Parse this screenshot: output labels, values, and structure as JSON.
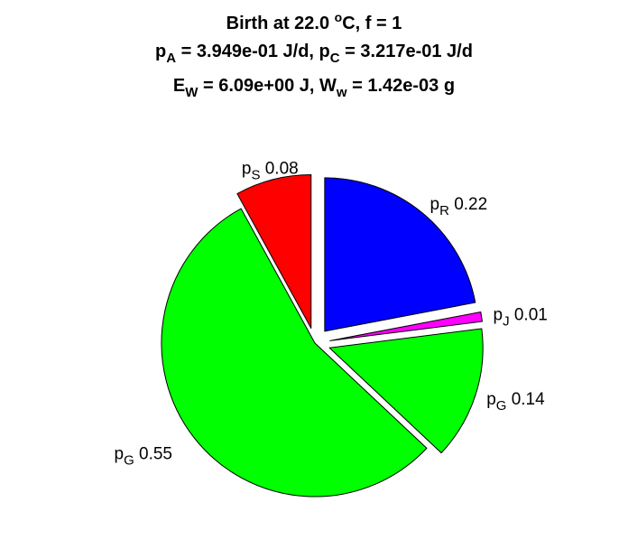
{
  "chart_data": {
    "type": "pie",
    "title": {
      "line1": {
        "main": "Birth at 22.0 ",
        "sup": "o",
        "rest": "C, f = 1"
      },
      "line2": {
        "a_base": "p",
        "a_sub": "A",
        "a_val": " = 3.949e-01 J/d, ",
        "c_base": "p",
        "c_sub": "C",
        "c_val": " = 3.217e-01 J/d"
      },
      "line3": {
        "e_base": "E",
        "e_sub": "W",
        "e_val": " = 6.09e+00 J, ",
        "w_base": "W",
        "w_sub": "w",
        "w_val": " = 1.42e-03 g"
      }
    },
    "slices": [
      {
        "base": "p",
        "sub": "R",
        "value": 0.22,
        "value_label": "0.22",
        "color": "#0000ff",
        "exploded": true
      },
      {
        "base": "p",
        "sub": "J",
        "value": 0.01,
        "value_label": "0.01",
        "color": "#ff00ff",
        "exploded": true
      },
      {
        "base": "p",
        "sub": "G",
        "value": 0.14,
        "value_label": "0.14",
        "color": "#00ff00",
        "exploded": true
      },
      {
        "base": "p",
        "sub": "G",
        "value": 0.55,
        "value_label": "0.55",
        "color": "#00ff00",
        "exploded": false
      },
      {
        "base": "p",
        "sub": "S",
        "value": 0.08,
        "value_label": "0.08",
        "color": "#ff0000",
        "exploded": true
      }
    ]
  }
}
